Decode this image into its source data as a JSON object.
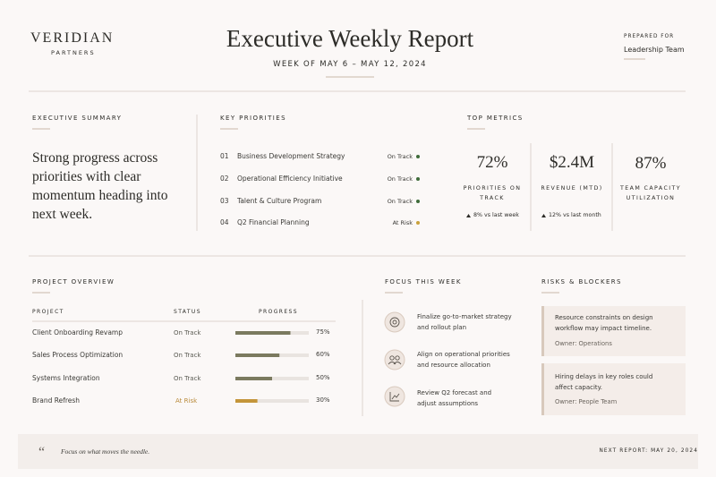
{
  "header": {
    "brand": "VERIDIAN",
    "brand_sub": "PARTNERS",
    "title": "Executive Weekly Report",
    "subtitle": "WEEK OF MAY 6 – MAY 12, 2024",
    "prepared_label": "PREPARED FOR",
    "prepared_for": "Leadership Team"
  },
  "summary": {
    "heading": "EXECUTIVE SUMMARY",
    "text": "Strong progress across priorities with clear momentum heading into next week."
  },
  "priorities": {
    "heading": "KEY PRIORITIES",
    "items": [
      {
        "num": "01",
        "name": "Business Development Strategy",
        "status": "On Track",
        "dot_color": "#3f6b3a"
      },
      {
        "num": "02",
        "name": "Operational Efficiency Initiative",
        "status": "On Track",
        "dot_color": "#3f6b3a"
      },
      {
        "num": "03",
        "name": "Talent & Culture Program",
        "status": "On Track",
        "dot_color": "#3f6b3a"
      },
      {
        "num": "04",
        "name": "Q2 Financial Planning",
        "status": "At Risk",
        "dot_color": "#c9a13c"
      }
    ]
  },
  "metrics": {
    "heading": "TOP METRICS",
    "items": [
      {
        "value": "72%",
        "label": "PRIORITIES ON TRACK",
        "delta": "8% vs last week"
      },
      {
        "value": "$2.4M",
        "label": "REVENUE (MTD)",
        "delta": "12% vs last month"
      },
      {
        "value": "87%",
        "label": "TEAM CAPACITY UTILIZATION"
      }
    ]
  },
  "projects": {
    "heading": "PROJECT OVERVIEW",
    "columns": [
      "PROJECT",
      "STATUS",
      "PROGRESS"
    ],
    "rows": [
      {
        "name": "Client Onboarding Revamp",
        "status": "On Track",
        "status_color": "#5a5a52",
        "progress": 75,
        "progress_label": "75%",
        "bar_color": "#7b7a5f"
      },
      {
        "name": "Sales Process Optimization",
        "status": "On Track",
        "status_color": "#5a5a52",
        "progress": 60,
        "progress_label": "60%",
        "bar_color": "#7b7a5f"
      },
      {
        "name": "Systems Integration",
        "status": "On Track",
        "status_color": "#5a5a52",
        "progress": 50,
        "progress_label": "50%",
        "bar_color": "#7b7a5f"
      },
      {
        "name": "Brand Refresh",
        "status": "At Risk",
        "status_color": "#b98a3a",
        "progress": 30,
        "progress_label": "30%",
        "bar_color": "#c4953a"
      }
    ]
  },
  "focus": {
    "heading": "FOCUS THIS WEEK",
    "items": [
      "Finalize go-to-market strategy and rollout plan",
      "Align on operational priorities and resource allocation",
      "Review Q2 forecast and adjust assumptions"
    ]
  },
  "risks": {
    "heading": "RISKS & BLOCKERS",
    "items": [
      {
        "text": "Resource constraints on design workflow may impact timeline.",
        "owner": "Owner: Operations"
      },
      {
        "text": "Hiring delays in key roles could affect capacity.",
        "owner": "Owner: People Team"
      }
    ]
  },
  "footer": {
    "quote": "Focus on what moves the needle.",
    "next": "NEXT REPORT: MAY 20, 2024"
  }
}
